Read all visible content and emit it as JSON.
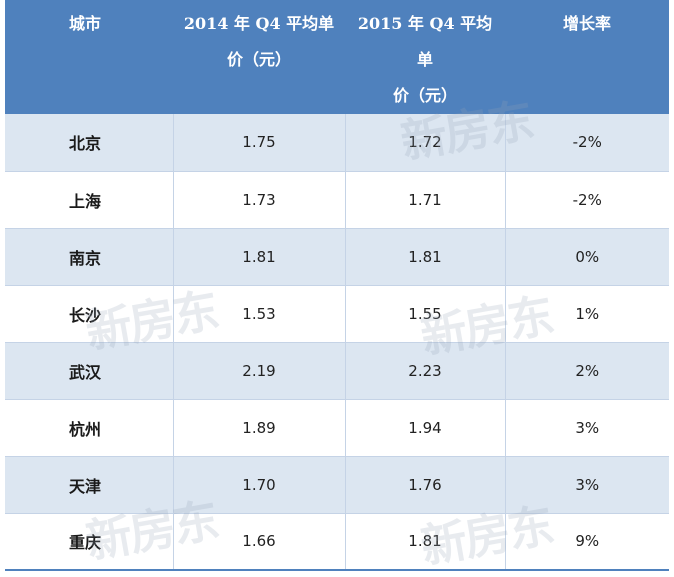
{
  "table": {
    "headers": [
      [
        "城市"
      ],
      [
        "2014 年 Q4 平均单",
        "价（元）"
      ],
      [
        "2015 年 Q4 平均单",
        "价（元）"
      ],
      [
        "增长率"
      ]
    ],
    "rows": [
      {
        "city": "北京",
        "q4_2014": "1.75",
        "q4_2015": "1.72",
        "growth": "-2%"
      },
      {
        "city": "上海",
        "q4_2014": "1.73",
        "q4_2015": "1.71",
        "growth": "-2%"
      },
      {
        "city": "南京",
        "q4_2014": "1.81",
        "q4_2015": "1.81",
        "growth": "0%"
      },
      {
        "city": "长沙",
        "q4_2014": "1.53",
        "q4_2015": "1.55",
        "growth": "1%"
      },
      {
        "city": "武汉",
        "q4_2014": "2.19",
        "q4_2015": "2.23",
        "growth": "2%"
      },
      {
        "city": "杭州",
        "q4_2014": "1.89",
        "q4_2015": "1.94",
        "growth": "3%"
      },
      {
        "city": "天津",
        "q4_2014": "1.70",
        "q4_2015": "1.76",
        "growth": "3%"
      },
      {
        "city": "重庆",
        "q4_2014": "1.66",
        "q4_2015": "1.81",
        "growth": "9%"
      }
    ]
  },
  "watermark": {
    "text": "新房东"
  },
  "colors": {
    "header_bg": "#4f81bd",
    "band_bg": "#dce6f1",
    "plain_bg": "#ffffff"
  }
}
